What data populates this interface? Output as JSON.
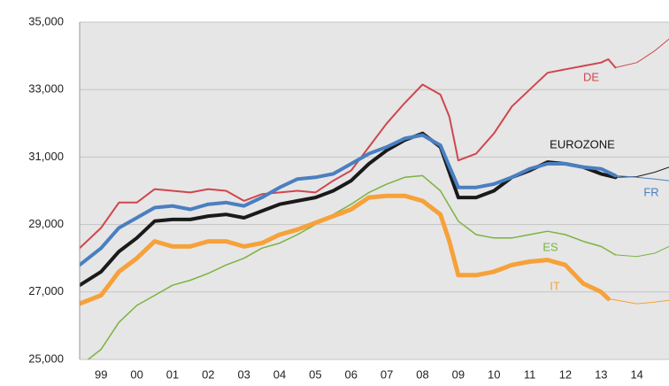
{
  "chart_data": {
    "type": "line",
    "xlim": [
      1998.9,
      2015.4
    ],
    "ylim": [
      25000,
      35000
    ],
    "yticks": [
      {
        "value": 25000,
        "label": "25,000"
      },
      {
        "value": 27000,
        "label": "27,000"
      },
      {
        "value": 29000,
        "label": "29,000"
      },
      {
        "value": 31000,
        "label": "31,000"
      },
      {
        "value": 33000,
        "label": "33,000"
      },
      {
        "value": 35000,
        "label": "35,000"
      }
    ],
    "xticks": [
      {
        "value": 1999.5,
        "label": "99"
      },
      {
        "value": 2000.5,
        "label": "00"
      },
      {
        "value": 2001.5,
        "label": "01"
      },
      {
        "value": 2002.5,
        "label": "02"
      },
      {
        "value": 2003.5,
        "label": "03"
      },
      {
        "value": 2004.5,
        "label": "04"
      },
      {
        "value": 2005.5,
        "label": "05"
      },
      {
        "value": 2006.5,
        "label": "06"
      },
      {
        "value": 2007.5,
        "label": "07"
      },
      {
        "value": 2008.5,
        "label": "08"
      },
      {
        "value": 2009.5,
        "label": "09"
      },
      {
        "value": 2010.5,
        "label": "10"
      },
      {
        "value": 2011.5,
        "label": "11"
      },
      {
        "value": 2012.5,
        "label": "12"
      },
      {
        "value": 2013.5,
        "label": "13"
      },
      {
        "value": 2014.5,
        "label": "14"
      }
    ],
    "grid": true,
    "series": [
      {
        "name": "DE",
        "color": "#d0464e",
        "line_width": 2,
        "x": [
          1998.9,
          1999.5,
          2000,
          2000.5,
          2001,
          2001.5,
          2002,
          2002.5,
          2003,
          2003.5,
          2004,
          2004.5,
          2005,
          2005.5,
          2006,
          2006.5,
          2007,
          2007.5,
          2008,
          2008.5,
          2009,
          2009.25,
          2009.5,
          2010,
          2010.5,
          2011,
          2011.5,
          2012,
          2012.5,
          2013,
          2013.5,
          2013.7,
          2013.9
        ],
        "values": [
          28300,
          28900,
          29650,
          29650,
          30050,
          30000,
          29950,
          30050,
          30000,
          29700,
          29900,
          29950,
          30000,
          29950,
          30300,
          30600,
          31300,
          32000,
          32600,
          33150,
          32850,
          32200,
          30900,
          31100,
          31700,
          32500,
          33000,
          33500,
          33600,
          33700,
          33800,
          33900,
          33650
        ],
        "projection": {
          "x": [
            2013.9,
            2014.5,
            2015,
            2015.4
          ],
          "values": [
            33650,
            33800,
            34150,
            34500
          ]
        }
      },
      {
        "name": "EUROZONE",
        "color": "#1a1a1a",
        "line_width": 4,
        "x": [
          1998.9,
          1999.5,
          2000,
          2000.5,
          2001,
          2001.5,
          2002,
          2002.5,
          2003,
          2003.5,
          2004,
          2004.5,
          2005,
          2005.5,
          2006,
          2006.5,
          2007,
          2007.5,
          2008,
          2008.5,
          2009,
          2009.5,
          2010,
          2010.5,
          2011,
          2011.5,
          2012,
          2012.5,
          2013,
          2013.5,
          2013.9
        ],
        "values": [
          27200,
          27600,
          28200,
          28600,
          29100,
          29150,
          29150,
          29250,
          29300,
          29200,
          29400,
          29600,
          29700,
          29800,
          30000,
          30300,
          30800,
          31200,
          31500,
          31700,
          31300,
          29800,
          29800,
          30000,
          30400,
          30600,
          30850,
          30800,
          30700,
          30500,
          30400
        ],
        "projection": {
          "x": [
            2013.9,
            2014.5,
            2015,
            2015.4
          ],
          "values": [
            30400,
            30420,
            30550,
            30700
          ]
        }
      },
      {
        "name": "FR",
        "color": "#4a7fc1",
        "line_width": 4,
        "x": [
          1998.9,
          1999.5,
          2000,
          2000.5,
          2001,
          2001.5,
          2002,
          2002.5,
          2003,
          2003.5,
          2004,
          2004.5,
          2005,
          2005.5,
          2006,
          2006.5,
          2007,
          2007.5,
          2008,
          2008.5,
          2009,
          2009.5,
          2010,
          2010.5,
          2011,
          2011.5,
          2012,
          2012.5,
          2013,
          2013.5,
          2013.9
        ],
        "values": [
          27800,
          28300,
          28900,
          29200,
          29500,
          29550,
          29450,
          29600,
          29650,
          29550,
          29800,
          30100,
          30350,
          30400,
          30500,
          30800,
          31100,
          31300,
          31550,
          31650,
          31350,
          30100,
          30100,
          30200,
          30400,
          30650,
          30800,
          30800,
          30700,
          30650,
          30450
        ],
        "projection": {
          "x": [
            2013.9,
            2014.5,
            2015,
            2015.4
          ],
          "values": [
            30450,
            30400,
            30350,
            30300
          ]
        }
      },
      {
        "name": "ES",
        "color": "#7bb33e",
        "line_width": 1.5,
        "x": [
          1998.9,
          1999.5,
          2000,
          2000.5,
          2001,
          2001.5,
          2002,
          2002.5,
          2003,
          2003.5,
          2004,
          2004.5,
          2005,
          2005.5,
          2006,
          2006.5,
          2007,
          2007.5,
          2008,
          2008.5,
          2009,
          2009.5,
          2010,
          2010.5,
          2011,
          2011.5,
          2012,
          2012.5,
          2013,
          2013.5,
          2013.9
        ],
        "values": [
          24800,
          25300,
          26100,
          26600,
          26900,
          27200,
          27350,
          27550,
          27800,
          28000,
          28300,
          28450,
          28700,
          29000,
          29300,
          29600,
          29950,
          30200,
          30400,
          30450,
          30000,
          29100,
          28700,
          28600,
          28600,
          28700,
          28800,
          28700,
          28500,
          28350,
          28100
        ],
        "projection": {
          "x": [
            2013.9,
            2014.5,
            2015,
            2015.4
          ],
          "values": [
            28100,
            28050,
            28150,
            28350
          ]
        }
      },
      {
        "name": "IT",
        "color": "#f6a13a",
        "line_width": 5,
        "x": [
          1998.9,
          1999.5,
          2000,
          2000.5,
          2001,
          2001.5,
          2002,
          2002.5,
          2003,
          2003.5,
          2004,
          2004.5,
          2005,
          2005.5,
          2006,
          2006.5,
          2007,
          2007.5,
          2008,
          2008.5,
          2009,
          2009.25,
          2009.5,
          2010,
          2010.5,
          2011,
          2011.5,
          2012,
          2012.5,
          2013,
          2013.5,
          2013.7
        ],
        "values": [
          26650,
          26900,
          27600,
          28000,
          28500,
          28350,
          28350,
          28500,
          28500,
          28350,
          28450,
          28700,
          28850,
          29050,
          29250,
          29450,
          29800,
          29850,
          29850,
          29700,
          29300,
          28500,
          27500,
          27500,
          27600,
          27800,
          27900,
          27950,
          27800,
          27250,
          27000,
          26800
        ],
        "projection": {
          "x": [
            2013.7,
            2014.5,
            2015,
            2015.4
          ],
          "values": [
            26800,
            26650,
            26700,
            26750
          ]
        }
      }
    ]
  }
}
